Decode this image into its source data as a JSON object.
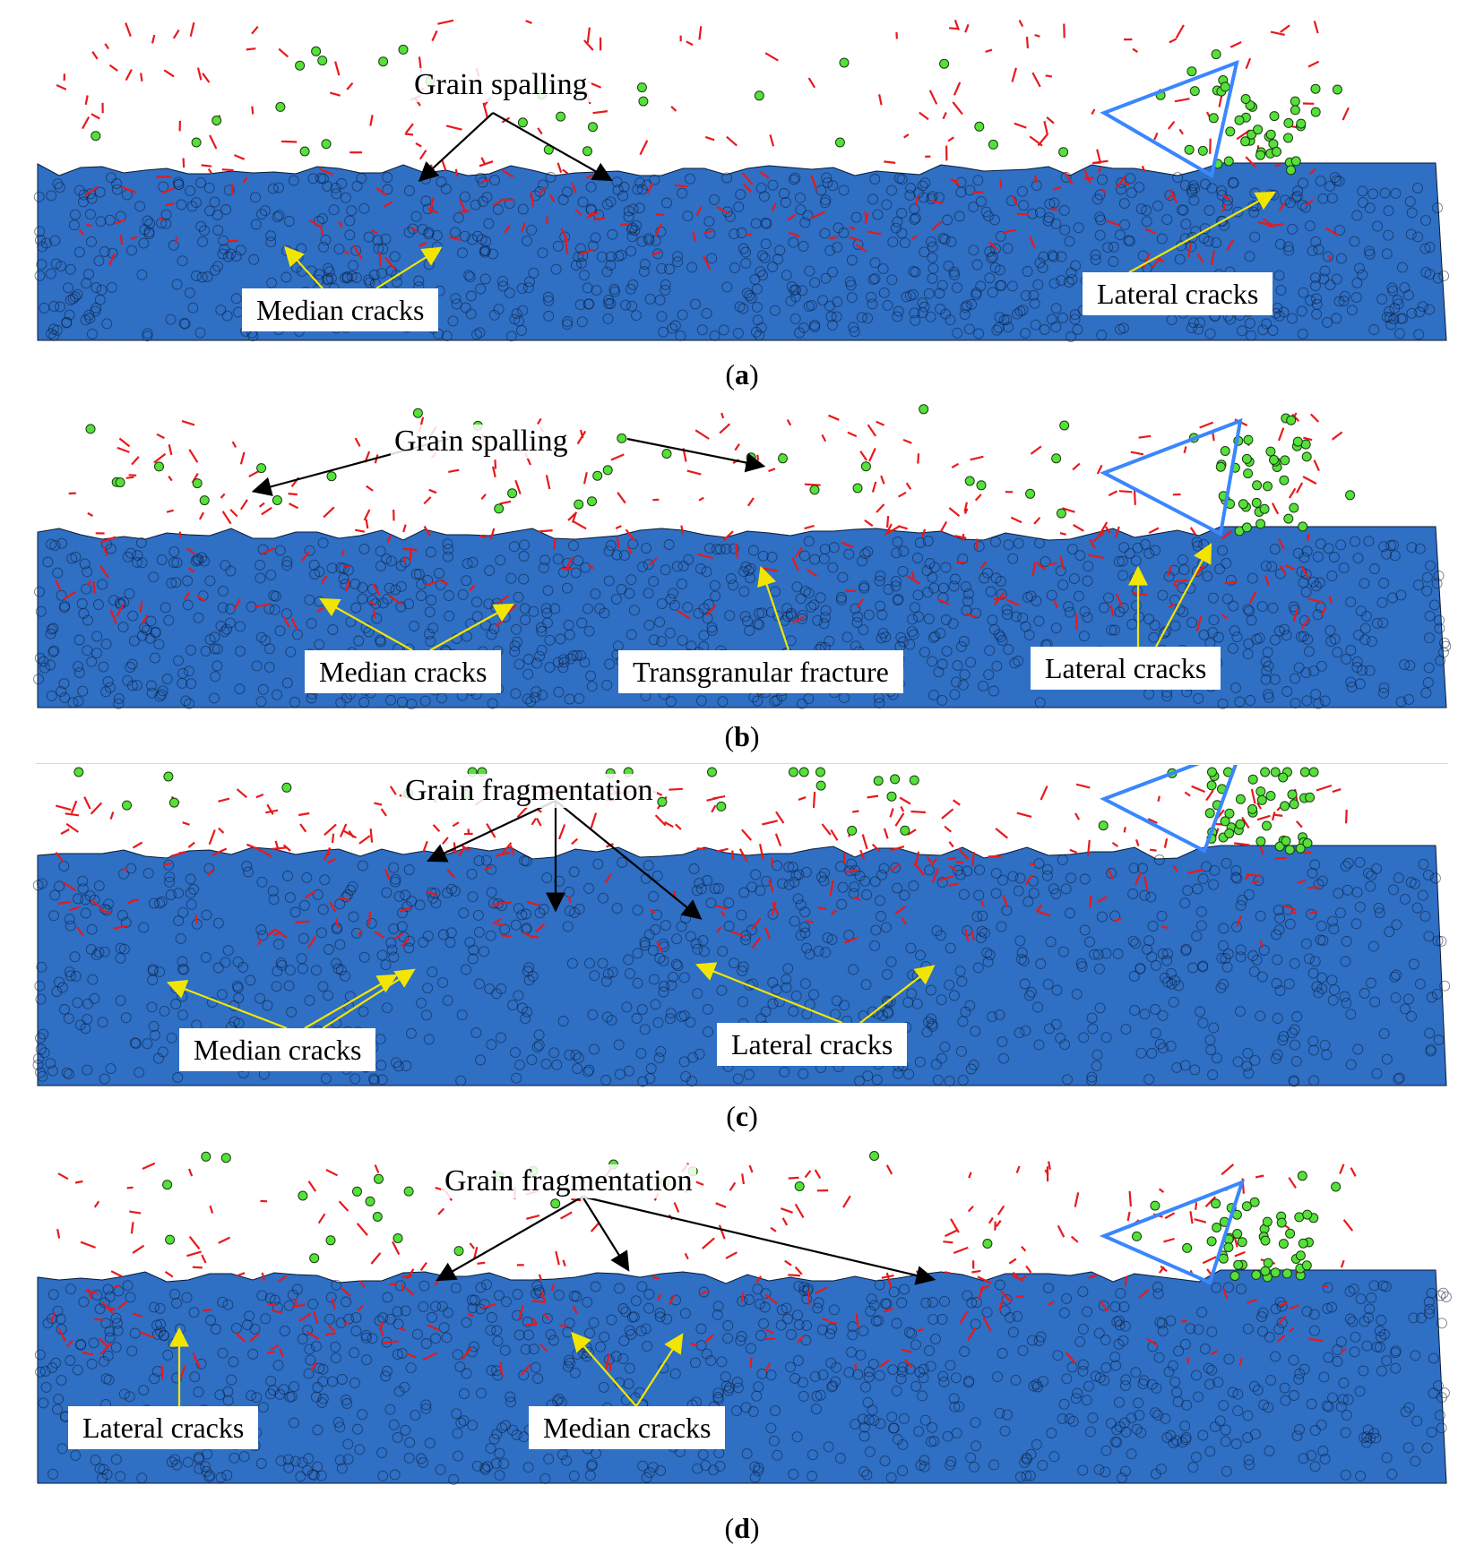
{
  "colors": {
    "substrate": "#2f6fc4",
    "grain_outline": "#0a1a33",
    "crack": "#e8191b",
    "fragment": "#55e03a",
    "tool_outline": "#3a86ff",
    "callout_black": "#000000",
    "callout_yellow": "#f2e600"
  },
  "panels": [
    {
      "caption": "(a)",
      "caption_letter": "a",
      "labels": {
        "top": "Grain spalling",
        "bottom_left": "Median cracks",
        "bottom_right": "Lateral cracks"
      }
    },
    {
      "caption": "(b)",
      "caption_letter": "b",
      "labels": {
        "top": "Grain spalling",
        "bottom_left": "Median cracks",
        "bottom_mid": "Transgranular fracture",
        "bottom_right": "Lateral cracks"
      }
    },
    {
      "caption": "(c)",
      "caption_letter": "c",
      "labels": {
        "top": "Grain fragmentation",
        "bottom_left": "Median cracks",
        "bottom_right": "Lateral cracks"
      }
    },
    {
      "caption": "(d)",
      "caption_letter": "d",
      "labels": {
        "top": "Grain fragmentation",
        "bottom_left": "Lateral cracks",
        "bottom_mid": "Median cracks"
      }
    }
  ]
}
